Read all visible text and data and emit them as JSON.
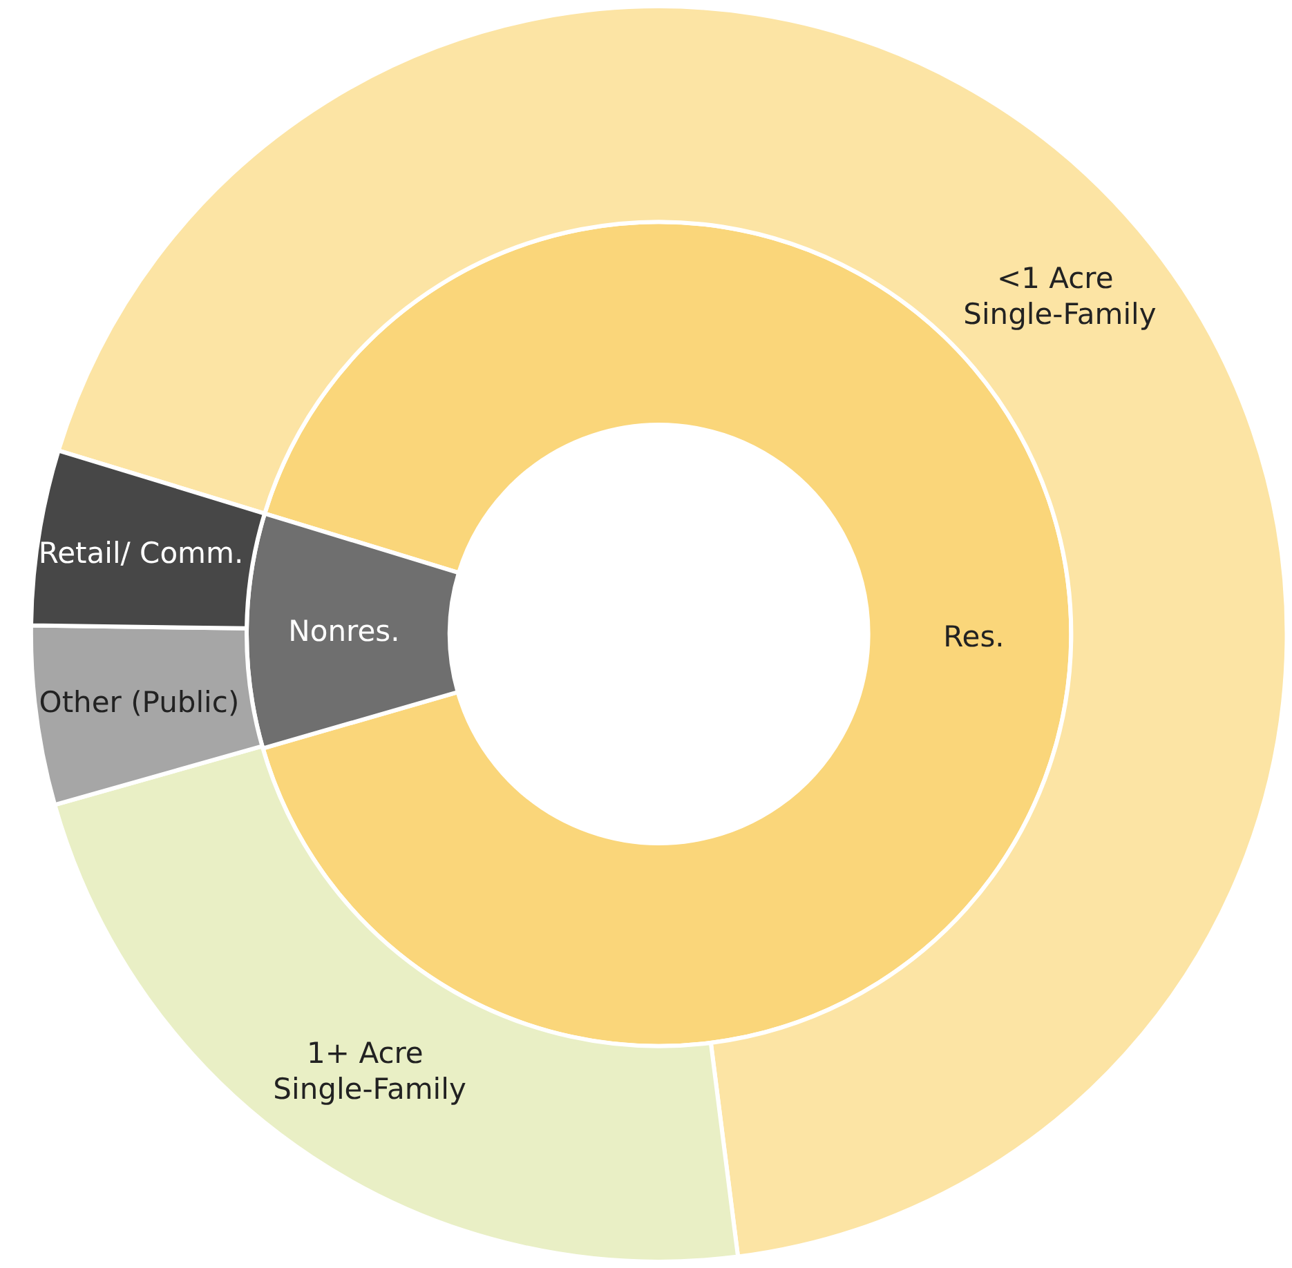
{
  "chart_data": [
    {
      "type": "donut",
      "categories": [
        "Res.",
        "Nonres."
      ],
      "values": [
        90.8,
        9.2
      ],
      "colors": [
        "#fad67a",
        "#6f6f6f"
      ]
    },
    {
      "type": "donut",
      "categories": [
        "<1 Acre Single-Family",
        "1+ Acre Single-Family",
        "Other (Public)",
        "Retail/ Comm."
      ],
      "values": [
        68.2,
        22.6,
        4.6,
        4.5
      ],
      "colors": [
        "#fce4a4",
        "#e9efc5",
        "#a6a6a6",
        "#474747"
      ]
    }
  ]
}
